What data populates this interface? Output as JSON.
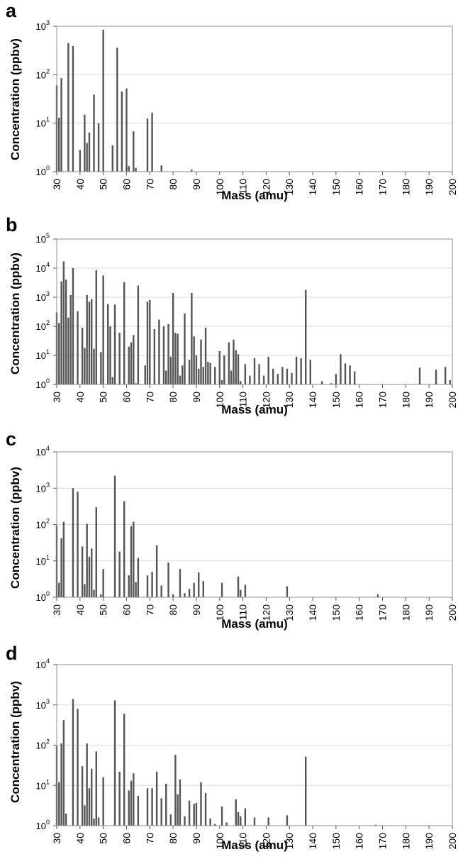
{
  "chart_data": [
    {
      "type": "bar",
      "panel": "a",
      "xlabel": "Mass (amu)",
      "ylabel": "Concentration (ppbv)",
      "xlim": [
        30,
        200
      ],
      "ylim": [
        1,
        1000
      ],
      "yscale": "log",
      "grid": "horizontal",
      "x_ticks": [
        30,
        40,
        50,
        60,
        70,
        80,
        90,
        100,
        110,
        120,
        130,
        140,
        150,
        160,
        170,
        180,
        190,
        200
      ],
      "y_ticks": [
        {
          "value": 1,
          "label": "10",
          "exp": "0"
        },
        {
          "value": 10,
          "label": "10",
          "exp": "1"
        },
        {
          "value": 100,
          "label": "10",
          "exp": "2"
        },
        {
          "value": 1000,
          "label": "10",
          "exp": "3"
        }
      ],
      "x": [
        30,
        31,
        32,
        35,
        37,
        40,
        42,
        43,
        44,
        46,
        48,
        50,
        54,
        56,
        58,
        60,
        61,
        63,
        64,
        69,
        71,
        75,
        88
      ],
      "values": [
        60,
        13,
        85,
        450,
        390,
        2.8,
        15,
        3.9,
        6.4,
        39,
        10,
        850,
        3.5,
        360,
        45,
        52,
        1.3,
        6.8,
        1.2,
        12.5,
        16.5,
        1.35,
        1.1
      ]
    },
    {
      "type": "bar",
      "panel": "b",
      "xlabel": "Mass (amu)",
      "ylabel": "Concentration (ppbv)",
      "xlim": [
        30,
        200
      ],
      "ylim": [
        1,
        100000
      ],
      "yscale": "log",
      "grid": "horizontal",
      "x_ticks": [
        30,
        40,
        50,
        60,
        70,
        80,
        90,
        100,
        110,
        120,
        130,
        140,
        150,
        160,
        170,
        180,
        190,
        200
      ],
      "y_ticks": [
        {
          "value": 1,
          "label": "10",
          "exp": "0"
        },
        {
          "value": 10,
          "label": "10",
          "exp": "1"
        },
        {
          "value": 100,
          "label": "10",
          "exp": "2"
        },
        {
          "value": 1000,
          "label": "10",
          "exp": "3"
        },
        {
          "value": 10000,
          "label": "10",
          "exp": "4"
        },
        {
          "value": 100000,
          "label": "10",
          "exp": "5"
        }
      ],
      "x": [
        30,
        31,
        32,
        33,
        34,
        35,
        36,
        37,
        39,
        41,
        42,
        43,
        44,
        45,
        46,
        47,
        49,
        50,
        52,
        53,
        54,
        55,
        57,
        59,
        61,
        62,
        63,
        64,
        65,
        68,
        69,
        70,
        72,
        74,
        76,
        77,
        78,
        79,
        80,
        81,
        82,
        83,
        84,
        85,
        87,
        88,
        89,
        90,
        91,
        92,
        93,
        94,
        95,
        96,
        98,
        100,
        101,
        102,
        104,
        105,
        106,
        107,
        108,
        109,
        111,
        113,
        115,
        117,
        119,
        121,
        123,
        125,
        127,
        129,
        131,
        133,
        135,
        137,
        139,
        144,
        148,
        150,
        152,
        154,
        156,
        158,
        186,
        193,
        197,
        199
      ],
      "values": [
        300,
        130,
        3500,
        17000,
        4000,
        200,
        1200,
        10000,
        330,
        90,
        18,
        1200,
        700,
        850,
        17,
        8500,
        13,
        5600,
        580,
        100,
        1.8,
        560,
        60,
        3300,
        20,
        28,
        50,
        1.1,
        2500,
        4.5,
        700,
        800,
        80,
        170,
        100,
        3,
        120,
        9,
        1400,
        60,
        55,
        2,
        4.5,
        280,
        7,
        1400,
        45,
        10,
        3.5,
        35,
        4,
        90,
        6,
        5.5,
        4,
        14,
        1.4,
        10,
        28,
        3,
        35,
        15,
        11,
        1.3,
        5,
        2,
        8,
        5,
        2,
        9,
        3.5,
        2.3,
        4,
        3.5,
        2.5,
        9,
        8,
        1800,
        7,
        1.3,
        1.1,
        2.3,
        11,
        5.3,
        4.5,
        2.8,
        3.8,
        3.2,
        4,
        1.4
      ]
    },
    {
      "type": "bar",
      "panel": "c",
      "xlabel": "Mass (amu)",
      "ylabel": "Concentration (ppbv)",
      "xlim": [
        30,
        200
      ],
      "ylim": [
        1,
        10000
      ],
      "yscale": "log",
      "grid": "horizontal",
      "x_ticks": [
        30,
        40,
        50,
        60,
        70,
        80,
        90,
        100,
        110,
        120,
        130,
        140,
        150,
        160,
        170,
        180,
        190,
        200
      ],
      "y_ticks": [
        {
          "value": 1,
          "label": "10",
          "exp": "0"
        },
        {
          "value": 10,
          "label": "10",
          "exp": "1"
        },
        {
          "value": 100,
          "label": "10",
          "exp": "2"
        },
        {
          "value": 1000,
          "label": "10",
          "exp": "3"
        },
        {
          "value": 10000,
          "label": "10",
          "exp": "4"
        }
      ],
      "x": [
        30,
        31,
        32,
        33,
        37,
        39,
        41,
        42,
        43,
        44,
        45,
        46,
        47,
        49,
        50,
        55,
        57,
        59,
        61,
        62,
        63,
        64,
        65,
        69,
        71,
        73,
        75,
        78,
        80,
        83,
        85,
        87,
        89,
        91,
        93,
        101,
        108,
        109,
        111,
        129,
        168
      ],
      "values": [
        95,
        2.5,
        42,
        120,
        1000,
        800,
        25,
        2.3,
        105,
        13,
        22,
        1.6,
        300,
        1.2,
        6,
        2200,
        18,
        440,
        4,
        90,
        120,
        2.6,
        12,
        4,
        5,
        27,
        2.1,
        9,
        1.2,
        6,
        1.3,
        1.7,
        2.5,
        4.8,
        2.8,
        2.5,
        3.7,
        1.6,
        2.2,
        2,
        1.2
      ]
    },
    {
      "type": "bar",
      "panel": "d",
      "xlabel": "Mass (amu)",
      "ylabel": "Concentration (ppbv)",
      "xlim": [
        30,
        200
      ],
      "ylim": [
        1,
        10000
      ],
      "yscale": "log",
      "grid": "horizontal",
      "x_ticks": [
        30,
        40,
        50,
        60,
        70,
        80,
        90,
        100,
        110,
        120,
        130,
        140,
        150,
        160,
        170,
        180,
        190,
        200
      ],
      "y_ticks": [
        {
          "value": 1,
          "label": "10",
          "exp": "0"
        },
        {
          "value": 10,
          "label": "10",
          "exp": "1"
        },
        {
          "value": 100,
          "label": "10",
          "exp": "2"
        },
        {
          "value": 1000,
          "label": "10",
          "exp": "3"
        },
        {
          "value": 10000,
          "label": "10",
          "exp": "4"
        }
      ],
      "x": [
        30,
        31,
        32,
        33,
        34,
        37,
        39,
        41,
        42,
        43,
        44,
        45,
        46,
        47,
        48,
        50,
        55,
        57,
        59,
        61,
        62,
        63,
        65,
        69,
        71,
        73,
        75,
        77,
        79,
        81,
        82,
        83,
        85,
        87,
        89,
        90,
        92,
        94,
        96,
        98,
        101,
        103,
        107,
        108,
        109,
        111,
        115,
        121,
        129,
        137,
        167
      ],
      "values": [
        95,
        12,
        110,
        420,
        2,
        1400,
        800,
        30,
        3.2,
        110,
        8.5,
        26,
        1.5,
        70,
        1.6,
        16,
        1300,
        22,
        600,
        7.5,
        13,
        20,
        5.5,
        8.5,
        8.5,
        22,
        4.8,
        11,
        1.9,
        58,
        6,
        14,
        1.7,
        4.2,
        3.5,
        3.7,
        12,
        6.5,
        1.5,
        1.1,
        3,
        1.2,
        4.5,
        2.2,
        1.7,
        2.7,
        1.6,
        1.6,
        1.8,
        52,
        1.05
      ]
    }
  ]
}
